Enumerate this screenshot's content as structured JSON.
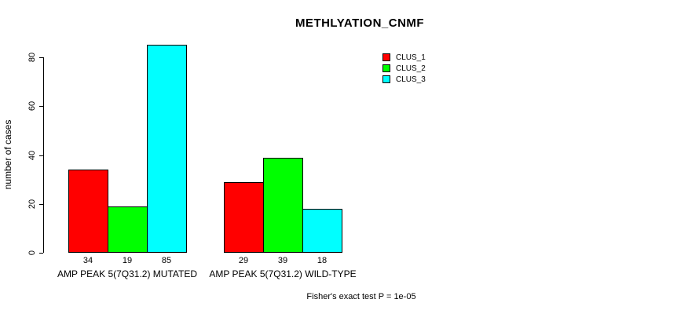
{
  "chart_data": {
    "type": "bar",
    "title": "METHLYATION_CNMF",
    "ylabel": "number of cases",
    "xlabel": "",
    "footnote": "Fisher's exact test P = 1e-05",
    "yticks": [
      0,
      20,
      40,
      60,
      80
    ],
    "ylim": [
      0,
      85
    ],
    "grid": false,
    "legend_position": "top-right",
    "legend_entries": [
      "CLUS_1",
      "CLUS_2",
      "CLUS_3"
    ],
    "categories": [
      "AMP PEAK 5(7Q31.2) MUTATED",
      "AMP PEAK 5(7Q31.2) WILD-TYPE"
    ],
    "series": [
      {
        "name": "CLUS_1",
        "color": "#FF0000",
        "values": [
          34,
          29
        ]
      },
      {
        "name": "CLUS_2",
        "color": "#00FF00",
        "values": [
          19,
          39
        ]
      },
      {
        "name": "CLUS_3",
        "color": "#00FFFF",
        "values": [
          85,
          18
        ]
      }
    ],
    "bar_value_labels_shown": true,
    "colors": {
      "background": "#FFFFFF",
      "axis": "#000000",
      "text": "#000000"
    }
  }
}
